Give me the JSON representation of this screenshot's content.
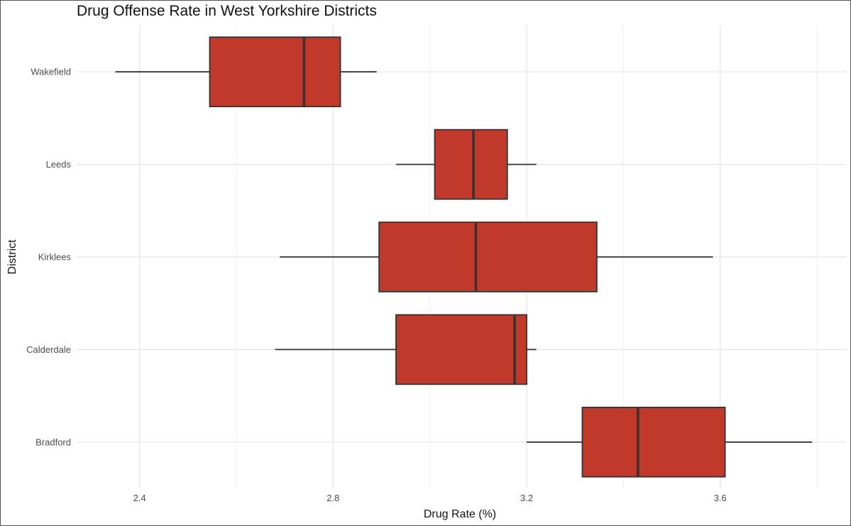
{
  "chart_data": {
    "type": "boxplot",
    "orientation": "horizontal",
    "title": "Drug Offense Rate in West Yorkshire Districts",
    "xlabel": "Drug Rate (%)",
    "ylabel": "District",
    "xlim": [
      2.27,
      3.86
    ],
    "x_ticks": [
      2.4,
      2.8,
      3.2,
      3.6
    ],
    "x_tick_labels": [
      "2.4",
      "2.8",
      "3.2",
      "3.6"
    ],
    "grid": true,
    "legend": "none",
    "fill_color": "#c0392b",
    "line_color": "#333333",
    "categories": [
      "Wakefield",
      "Leeds",
      "Kirklees",
      "Calderdale",
      "Bradford"
    ],
    "boxes": [
      {
        "name": "Wakefield",
        "whisker_low": 2.35,
        "q1": 2.545,
        "median": 2.74,
        "q3": 2.815,
        "whisker_high": 2.89
      },
      {
        "name": "Leeds",
        "whisker_low": 2.93,
        "q1": 3.01,
        "median": 3.09,
        "q3": 3.16,
        "whisker_high": 3.22
      },
      {
        "name": "Kirklees",
        "whisker_low": 2.69,
        "q1": 2.895,
        "median": 3.095,
        "q3": 3.345,
        "whisker_high": 3.585
      },
      {
        "name": "Calderdale",
        "whisker_low": 2.68,
        "q1": 2.93,
        "median": 3.175,
        "q3": 3.2,
        "whisker_high": 3.22
      },
      {
        "name": "Bradford",
        "whisker_low": 3.2,
        "q1": 3.315,
        "median": 3.43,
        "q3": 3.61,
        "whisker_high": 3.79
      }
    ]
  }
}
